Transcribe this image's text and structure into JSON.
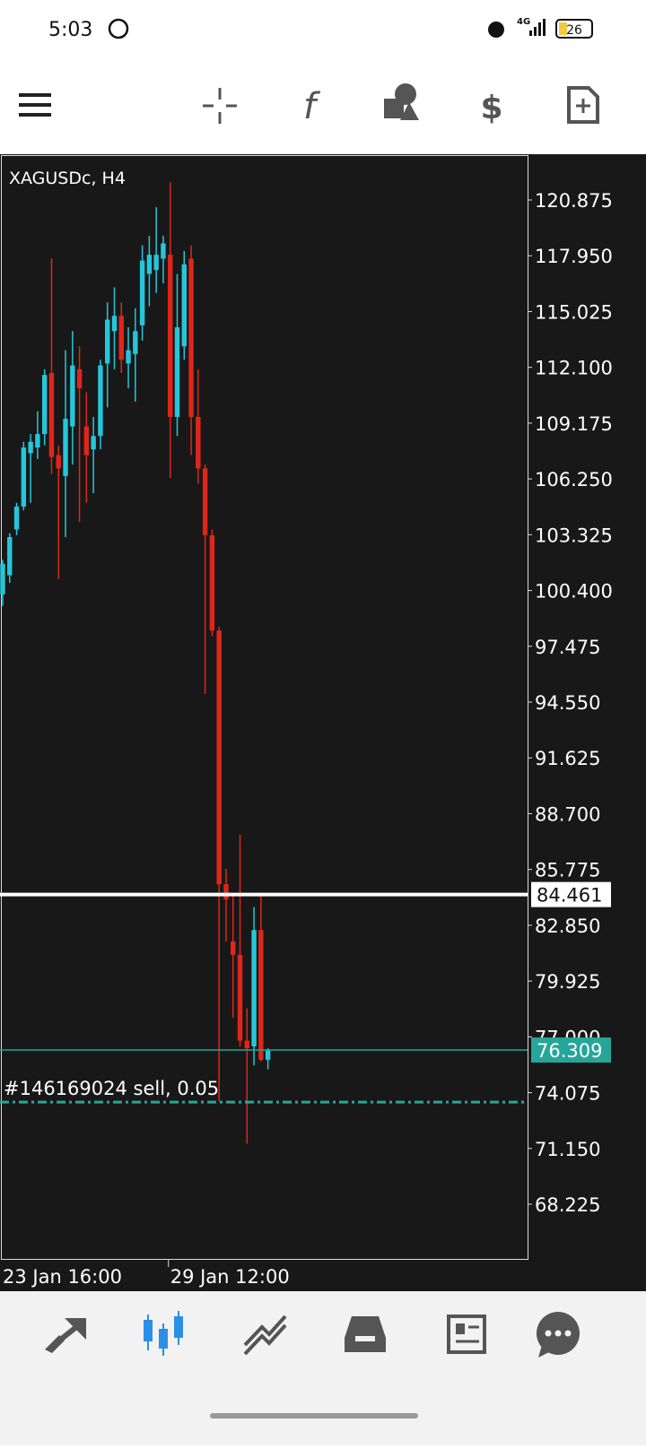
{
  "status_bar": {
    "time": "5:03",
    "network": "4G",
    "battery": "26"
  },
  "chart_data": {
    "type": "candlestick",
    "title": "XAGUSDc, H4",
    "categories": [
      "23 Jan 16:00",
      null,
      null,
      null,
      null,
      null,
      null,
      null,
      null,
      null,
      null,
      null,
      null,
      null,
      null,
      null,
      null,
      null,
      null,
      null,
      null,
      null,
      null,
      null,
      "29 Jan 12:00",
      null,
      null,
      null,
      null,
      null,
      null,
      null,
      null,
      null,
      null,
      null,
      null,
      null,
      null
    ],
    "open": [
      100.2,
      101.2,
      103.6,
      104.8,
      107.6,
      107.9,
      108.6,
      111.8,
      107.5,
      106.4,
      109.0,
      112.0,
      109.0,
      107.8,
      108.5,
      112.3,
      114.0,
      114.8,
      112.3,
      112.8,
      114.3,
      117.0,
      117.2,
      117.8,
      118.0,
      109.5,
      113.2,
      117.8,
      109.5,
      106.8,
      103.3,
      98.3,
      85.0,
      82.0,
      81.3,
      76.8,
      76.5,
      82.6,
      75.8
    ],
    "high": [
      102.0,
      103.4,
      105.0,
      108.2,
      108.6,
      109.8,
      112.0,
      117.8,
      108.0,
      113.0,
      114.0,
      113.2,
      110.8,
      109.5,
      112.5,
      115.5,
      116.3,
      115.5,
      114.2,
      115.2,
      118.5,
      119.0,
      120.5,
      119.0,
      121.8,
      117.0,
      118.2,
      118.5,
      112.0,
      107.0,
      103.6,
      98.5,
      85.8,
      84.5,
      87.6,
      78.5,
      83.8,
      84.4,
      76.4
    ],
    "low": [
      99.6,
      100.8,
      103.3,
      104.6,
      105.0,
      107.3,
      108.0,
      106.5,
      101.0,
      103.2,
      107.0,
      104.0,
      105.0,
      105.5,
      107.8,
      110.0,
      112.0,
      111.8,
      111.0,
      110.3,
      113.5,
      115.3,
      116.0,
      116.5,
      106.3,
      108.5,
      112.5,
      107.5,
      106.0,
      95.0,
      98.0,
      73.6,
      82.0,
      78.0,
      76.5,
      71.4,
      75.5,
      75.7,
      75.3
    ],
    "close": [
      101.8,
      103.2,
      104.8,
      107.9,
      108.2,
      108.6,
      111.7,
      107.4,
      106.8,
      109.4,
      112.2,
      111.0,
      107.5,
      108.5,
      112.2,
      114.6,
      114.8,
      112.5,
      113.0,
      114.0,
      117.7,
      118.0,
      118.0,
      118.6,
      109.5,
      114.2,
      117.5,
      109.5,
      106.8,
      103.3,
      98.3,
      85.0,
      84.2,
      81.3,
      76.8,
      76.4,
      82.6,
      75.8,
      76.3
    ],
    "up_color": "#26c6da",
    "down_color": "#e0261a",
    "ylim": [
      65.311,
      123.226
    ],
    "yticks": [
      120.875,
      {
        "value": 117.95,
        "label": "117.950"
      },
      115.025,
      {
        "value": 112.1,
        "label": "112.100"
      },
      109.175,
      {
        "value": 106.25,
        "label": "106.250"
      },
      103.325,
      {
        "value": 100.4,
        "label": "100.400"
      },
      97.475,
      {
        "value": 94.55,
        "label": "94.550"
      },
      91.625,
      {
        "value": 88.7,
        "label": "88.700"
      },
      85.775,
      {
        "value": 82.85,
        "label": "82.850"
      },
      79.925,
      {
        "value": 77.0,
        "label": "77.000"
      },
      74.075,
      {
        "value": 71.15,
        "label": "71.150"
      },
      68.225
    ],
    "price_lines": [
      {
        "value": 84.461,
        "color": "#ffffff"
      },
      {
        "value": 76.309,
        "color": "#26a69a"
      }
    ],
    "order": {
      "label": "#146169024 sell, 0.05",
      "value": 73.58,
      "color": "#26a69a"
    }
  }
}
